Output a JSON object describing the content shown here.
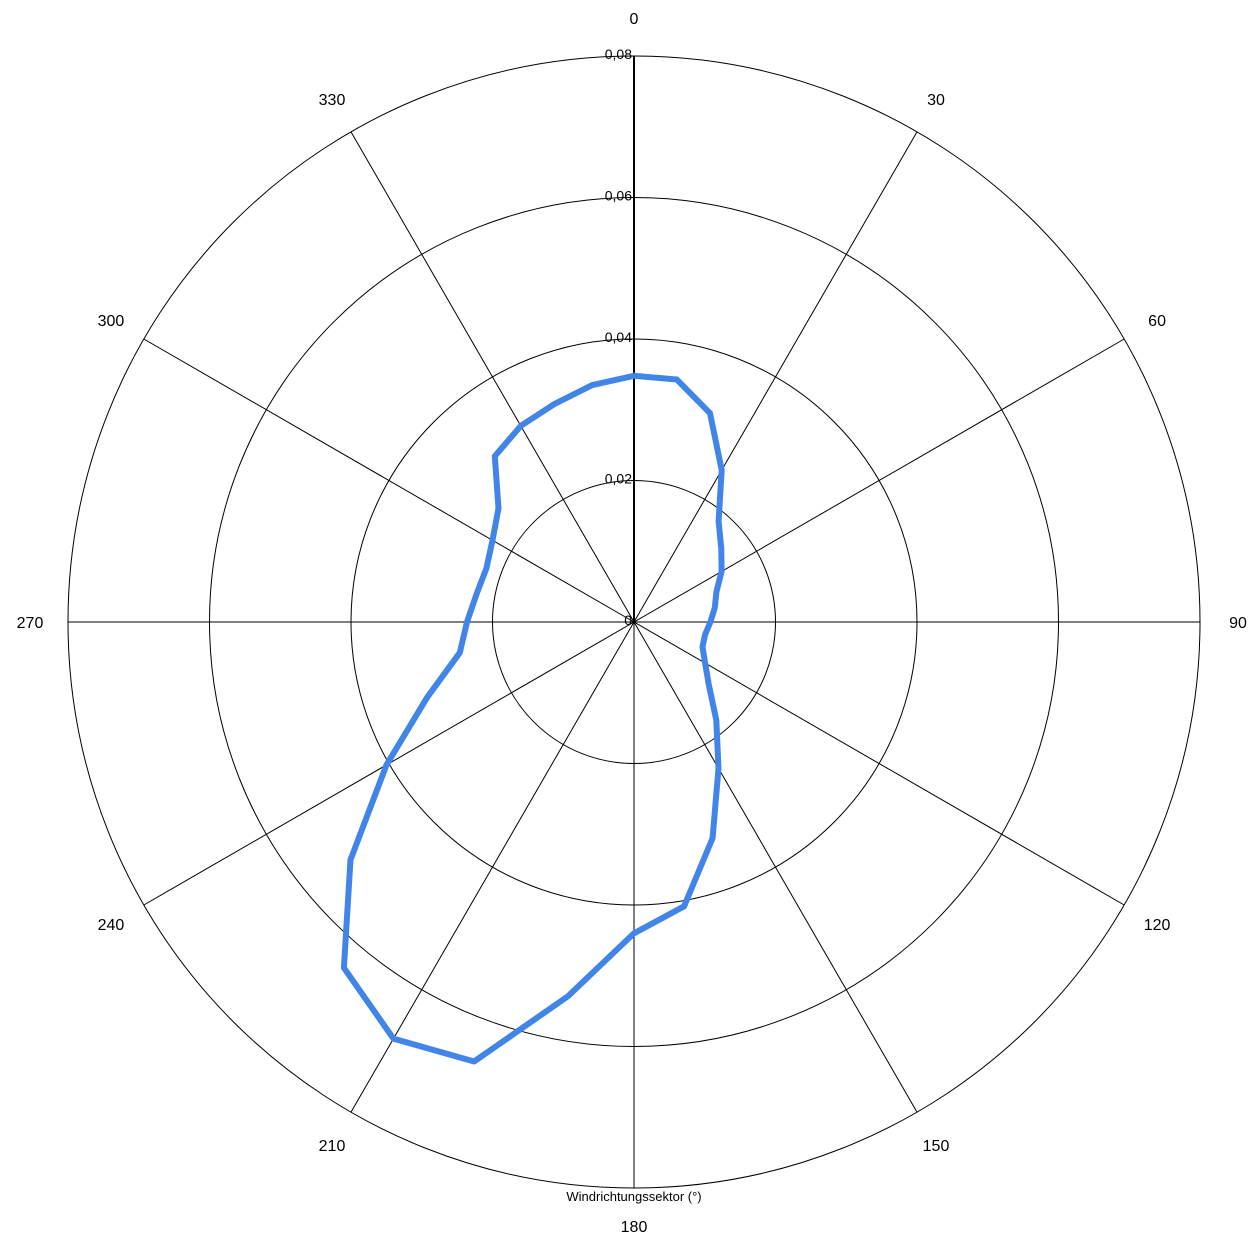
{
  "chart_data": {
    "type": "polar-line",
    "title": "",
    "xlabel": "Windrichtungssektor (°)",
    "angle_ticks": [
      0,
      30,
      60,
      90,
      120,
      150,
      180,
      210,
      240,
      270,
      300,
      330
    ],
    "angle_tick_labels": [
      "0",
      "30",
      "60",
      "90",
      "120",
      "150",
      "180",
      "210",
      "240",
      "270",
      "300",
      "330"
    ],
    "radial_ticks": [
      0,
      0.02,
      0.04,
      0.06,
      0.08
    ],
    "radial_tick_labels": [
      "0",
      "0,02",
      "0,04",
      "0,06",
      "0,08"
    ],
    "rlim": [
      0,
      0.08
    ],
    "grid": true,
    "legend": "none",
    "series": [
      {
        "color": "#4285e8",
        "points": [
          {
            "angle": 0,
            "r": 0.0348
          },
          {
            "angle": 10,
            "r": 0.0348
          },
          {
            "angle": 20,
            "r": 0.0314
          },
          {
            "angle": 30,
            "r": 0.0248
          },
          {
            "angle": 40,
            "r": 0.0186
          },
          {
            "angle": 50,
            "r": 0.0161
          },
          {
            "angle": 60,
            "r": 0.0143
          },
          {
            "angle": 70,
            "r": 0.0124
          },
          {
            "angle": 80,
            "r": 0.0116
          },
          {
            "angle": 90,
            "r": 0.0108
          },
          {
            "angle": 100,
            "r": 0.0102
          },
          {
            "angle": 110,
            "r": 0.0103
          },
          {
            "angle": 120,
            "r": 0.0116
          },
          {
            "angle": 130,
            "r": 0.0138
          },
          {
            "angle": 140,
            "r": 0.0181
          },
          {
            "angle": 150,
            "r": 0.0239
          },
          {
            "angle": 160,
            "r": 0.0325
          },
          {
            "angle": 170,
            "r": 0.0408
          },
          {
            "angle": 180,
            "r": 0.044
          },
          {
            "angle": 190,
            "r": 0.0537
          },
          {
            "angle": 200,
            "r": 0.0661
          },
          {
            "angle": 210,
            "r": 0.068
          },
          {
            "angle": 220,
            "r": 0.0638
          },
          {
            "angle": 230,
            "r": 0.0523
          },
          {
            "angle": 240,
            "r": 0.0404
          },
          {
            "angle": 250,
            "r": 0.0311
          },
          {
            "angle": 260,
            "r": 0.025
          },
          {
            "angle": 270,
            "r": 0.0236
          },
          {
            "angle": 280,
            "r": 0.0226
          },
          {
            "angle": 290,
            "r": 0.0222
          },
          {
            "angle": 300,
            "r": 0.0231
          },
          {
            "angle": 310,
            "r": 0.025
          },
          {
            "angle": 320,
            "r": 0.0306
          },
          {
            "angle": 330,
            "r": 0.032
          },
          {
            "angle": 340,
            "r": 0.0328
          },
          {
            "angle": 350,
            "r": 0.034
          }
        ]
      }
    ]
  }
}
